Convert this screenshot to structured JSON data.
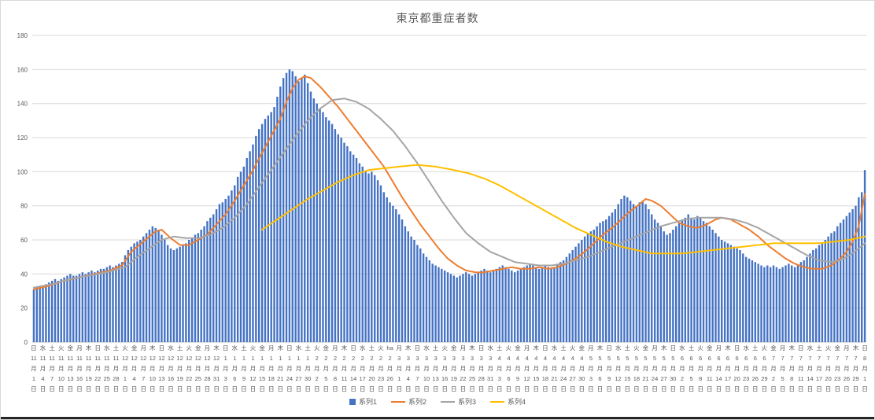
{
  "chart_data": {
    "type": "bar",
    "title": "東京都重症者数",
    "xlabel": "",
    "ylabel": "",
    "ylim": [
      0,
      180
    ],
    "y_ticks": [
      0,
      20,
      40,
      60,
      80,
      100,
      120,
      140,
      160,
      180
    ],
    "grid": true,
    "legend_position": "bottom",
    "colors": {
      "bar": "#4472C4",
      "line2": "#ED7D31",
      "line3": "#A5A5A5",
      "line4": "#FFC000",
      "gridline": "#D9D9D9",
      "axis_text": "#595959"
    },
    "x_labels": [
      "日\n11\n月\n1\n日",
      "水\n11\n月\n4\n日",
      "土\n11\n月\n7\n日",
      "火\n11\n月\n10\n日",
      "金\n11\n月\n13\n日",
      "月\n11\n月\n16\n日",
      "木\n11\n月\n19\n日",
      "日\n11\n月\n22\n日",
      "水\n11\n月\n25\n日",
      "土\n11\n月\n28\n日",
      "火\n12\n月\n1\n日",
      "金\n12\n月\n4\n日",
      "月\n12\n月\n7\n日",
      "木\n12\n月\n10\n日",
      "日\n12\n月\n13\n日",
      "水\n12\n月\n16\n日",
      "土\n12\n月\n19\n日",
      "火\n12\n月\n22\n日",
      "金\n12\n月\n25\n日",
      "月\n12\n月\n28\n日",
      "木\n12\n月\n31\n日",
      "日\n1\n月\n3\n日",
      "水\n1\n月\n6\n日",
      "土\n1\n月\n9\n日",
      "火\n1\n月\n12\n日",
      "金\n1\n月\n15\n日",
      "月\n1\n月\n18\n日",
      "木\n1\n月\n21\n日",
      "日\n1\n月\n24\n日",
      "水\n1\n月\n27\n日",
      "土\n1\n月\n30\n日",
      "火\n2\n月\n2\n日",
      "金\n2\n月\n5\n日",
      "月\n2\n月\n8\n日",
      "木\n2\n月\n11\n日",
      "日\n2\n月\n14\n日",
      "水\n2\n月\n17\n日",
      "土\n2\n月\n20\n日",
      "火\n2\n月\n23\n日",
      "ha\n2\n月\n26\n日",
      "月\n3\n月\n1\n日",
      "木\n3\n月\n4\n日",
      "日\n3\n月\n7\n日",
      "水\n3\n月\n10\n日",
      "土\n3\n月\n13\n日",
      "火\n3\n月\n16\n日",
      "金\n3\n月\n19\n日",
      "月\n3\n月\n22\n日",
      "木\n3\n月\n25\n日",
      "日\n3\n月\n28\n日",
      "水\n3\n月\n31\n日",
      "土\n4\n月\n3\n日",
      "火\n4\n月\n6\n日",
      "金\n4\n月\n9\n日",
      "月\n4\n月\n12\n日",
      "木\n4\n月\n15\n日",
      "日\n4\n月\n18\n日",
      "水\n4\n月\n21\n日",
      "土\n4\n月\n24\n日",
      "火\n4\n月\n27\n日",
      "金\n4\n月\n30\n日",
      "月\n5\n月\n3\n日",
      "木\n5\n月\n6\n日",
      "日\n5\n月\n9\n日",
      "水\n5\n月\n12\n日",
      "土\n5\n月\n15\n日",
      "火\n5\n月\n18\n日",
      "金\n5\n月\n21\n日",
      "月\n5\n月\n24\n日",
      "木\n5\n月\n27\n日",
      "日\n5\n月\n30\n日",
      "水\n6\n月\n2\n日",
      "土\n6\n月\n5\n日",
      "火\n6\n月\n8\n日",
      "金\n6\n月\n11\n日",
      "月\n6\n月\n14\n日",
      "木\n6\n月\n17\n日",
      "日\n6\n月\n20\n日",
      "水\n6\n月\n23\n日",
      "土\n6\n月\n26\n日",
      "火\n6\n月\n29\n日",
      "金\n7\n月\n2\n日",
      "月\n7\n月\n5\n日",
      "木\n7\n月\n8\n日",
      "日\n7\n月\n11\n日",
      "水\n7\n月\n14\n日",
      "土\n7\n月\n17\n日",
      "火\n7\n月\n20\n日",
      "金\n7\n月\n23\n日",
      "月\n7\n月\n26\n日",
      "木\n7\n月\n29\n日",
      "日\n8\n月\n1\n日"
    ],
    "x_label_step_days": 3,
    "series": [
      {
        "name": "系列1",
        "type": "bar",
        "color": "#4472C4",
        "values": [
          31,
          32,
          33,
          33,
          34,
          35,
          36,
          37,
          36,
          37,
          38,
          39,
          40,
          39,
          39,
          40,
          41,
          40,
          41,
          42,
          41,
          42,
          43,
          43,
          44,
          45,
          44,
          45,
          46,
          47,
          51,
          54,
          56,
          58,
          59,
          60,
          62,
          64,
          66,
          68,
          67,
          66,
          63,
          60,
          57,
          55,
          54,
          55,
          56,
          57,
          58,
          60,
          61,
          63,
          64,
          66,
          68,
          71,
          73,
          75,
          78,
          81,
          82,
          84,
          86,
          89,
          92,
          97,
          100,
          103,
          108,
          112,
          116,
          121,
          125,
          128,
          131,
          133,
          135,
          138,
          144,
          150,
          155,
          158,
          160,
          159,
          156,
          153,
          155,
          157,
          152,
          147,
          143,
          140,
          137,
          135,
          132,
          130,
          128,
          125,
          122,
          120,
          117,
          115,
          112,
          110,
          108,
          105,
          103,
          100,
          99,
          100,
          98,
          95,
          92,
          88,
          85,
          82,
          80,
          78,
          75,
          72,
          68,
          65,
          62,
          60,
          57,
          55,
          52,
          50,
          48,
          46,
          45,
          44,
          43,
          42,
          41,
          40,
          39,
          38,
          39,
          40,
          41,
          40,
          39,
          40,
          41,
          42,
          43,
          42,
          41,
          42,
          43,
          44,
          45,
          44,
          43,
          42,
          41,
          42,
          43,
          44,
          45,
          46,
          45,
          44,
          43,
          44,
          45,
          44,
          43,
          44,
          46,
          47,
          48,
          50,
          52,
          54,
          56,
          58,
          60,
          62,
          64,
          65,
          66,
          68,
          70,
          71,
          72,
          74,
          76,
          78,
          81,
          84,
          86,
          85,
          83,
          81,
          80,
          82,
          83,
          81,
          78,
          75,
          72,
          70,
          68,
          65,
          63,
          64,
          66,
          68,
          70,
          72,
          73,
          75,
          73,
          72,
          74,
          73,
          71,
          70,
          68,
          66,
          64,
          62,
          60,
          59,
          58,
          57,
          56,
          55,
          54,
          52,
          50,
          49,
          48,
          47,
          46,
          45,
          44,
          45,
          44,
          45,
          44,
          43,
          44,
          45,
          46,
          45,
          44,
          45,
          47,
          48,
          50,
          52,
          54,
          55,
          57,
          58,
          60,
          62,
          64,
          65,
          68,
          70,
          72,
          74,
          76,
          78,
          80,
          85,
          88,
          101
        ]
      },
      {
        "name": "系列2",
        "type": "line",
        "color": "#ED7D31",
        "anchors": [
          [
            0,
            31
          ],
          [
            5,
            33
          ],
          [
            10,
            36
          ],
          [
            15,
            38
          ],
          [
            20,
            40
          ],
          [
            25,
            42
          ],
          [
            29,
            45
          ],
          [
            32,
            53
          ],
          [
            36,
            59
          ],
          [
            40,
            65
          ],
          [
            42,
            66
          ],
          [
            45,
            61
          ],
          [
            48,
            57
          ],
          [
            51,
            57
          ],
          [
            54,
            60
          ],
          [
            57,
            63
          ],
          [
            60,
            69
          ],
          [
            63,
            75
          ],
          [
            66,
            83
          ],
          [
            69,
            92
          ],
          [
            72,
            101
          ],
          [
            75,
            111
          ],
          [
            78,
            121
          ],
          [
            81,
            131
          ],
          [
            83,
            141
          ],
          [
            85,
            149
          ],
          [
            87,
            154
          ],
          [
            89,
            156
          ],
          [
            91,
            155
          ],
          [
            94,
            150
          ],
          [
            97,
            144
          ],
          [
            100,
            138
          ],
          [
            103,
            131
          ],
          [
            106,
            124
          ],
          [
            109,
            117
          ],
          [
            112,
            110
          ],
          [
            115,
            103
          ],
          [
            118,
            94
          ],
          [
            121,
            85
          ],
          [
            124,
            77
          ],
          [
            127,
            69
          ],
          [
            130,
            62
          ],
          [
            133,
            55
          ],
          [
            136,
            49
          ],
          [
            139,
            45
          ],
          [
            142,
            42
          ],
          [
            145,
            41
          ],
          [
            148,
            41
          ],
          [
            151,
            42
          ],
          [
            154,
            43
          ],
          [
            157,
            44
          ],
          [
            160,
            43
          ],
          [
            163,
            43
          ],
          [
            166,
            44
          ],
          [
            169,
            43
          ],
          [
            172,
            44
          ],
          [
            175,
            46
          ],
          [
            178,
            49
          ],
          [
            181,
            53
          ],
          [
            184,
            58
          ],
          [
            187,
            63
          ],
          [
            190,
            67
          ],
          [
            193,
            72
          ],
          [
            196,
            77
          ],
          [
            199,
            81
          ],
          [
            201,
            84
          ],
          [
            203,
            83
          ],
          [
            206,
            80
          ],
          [
            209,
            75
          ],
          [
            212,
            70
          ],
          [
            215,
            68
          ],
          [
            218,
            67
          ],
          [
            221,
            69
          ],
          [
            224,
            72
          ],
          [
            226,
            73
          ],
          [
            229,
            72
          ],
          [
            232,
            69
          ],
          [
            235,
            66
          ],
          [
            238,
            62
          ],
          [
            241,
            57
          ],
          [
            244,
            53
          ],
          [
            247,
            49
          ],
          [
            250,
            46
          ],
          [
            253,
            44
          ],
          [
            256,
            43
          ],
          [
            259,
            43
          ],
          [
            262,
            45
          ],
          [
            265,
            49
          ],
          [
            267,
            53
          ],
          [
            269,
            59
          ],
          [
            271,
            68
          ],
          [
            273,
            87
          ]
        ]
      },
      {
        "name": "系列3",
        "type": "line",
        "color": "#A5A5A5",
        "anchors": [
          [
            0,
            32
          ],
          [
            6,
            34
          ],
          [
            12,
            37
          ],
          [
            18,
            39
          ],
          [
            24,
            41
          ],
          [
            30,
            44
          ],
          [
            34,
            50
          ],
          [
            38,
            55
          ],
          [
            42,
            60
          ],
          [
            46,
            62
          ],
          [
            50,
            61
          ],
          [
            54,
            61
          ],
          [
            58,
            63
          ],
          [
            62,
            67
          ],
          [
            66,
            73
          ],
          [
            70,
            81
          ],
          [
            74,
            91
          ],
          [
            78,
            101
          ],
          [
            82,
            111
          ],
          [
            86,
            121
          ],
          [
            90,
            130
          ],
          [
            94,
            137
          ],
          [
            98,
            142
          ],
          [
            102,
            143
          ],
          [
            106,
            141
          ],
          [
            110,
            137
          ],
          [
            114,
            131
          ],
          [
            118,
            124
          ],
          [
            122,
            115
          ],
          [
            126,
            105
          ],
          [
            130,
            94
          ],
          [
            134,
            83
          ],
          [
            138,
            73
          ],
          [
            142,
            64
          ],
          [
            146,
            58
          ],
          [
            150,
            53
          ],
          [
            154,
            50
          ],
          [
            158,
            47
          ],
          [
            162,
            46
          ],
          [
            166,
            45
          ],
          [
            170,
            45
          ],
          [
            174,
            46
          ],
          [
            178,
            48
          ],
          [
            182,
            50
          ],
          [
            186,
            53
          ],
          [
            190,
            56
          ],
          [
            194,
            59
          ],
          [
            198,
            62
          ],
          [
            202,
            65
          ],
          [
            206,
            68
          ],
          [
            210,
            70
          ],
          [
            214,
            72
          ],
          [
            218,
            73
          ],
          [
            222,
            73
          ],
          [
            226,
            73
          ],
          [
            230,
            72
          ],
          [
            234,
            70
          ],
          [
            238,
            67
          ],
          [
            242,
            63
          ],
          [
            246,
            59
          ],
          [
            250,
            55
          ],
          [
            254,
            51
          ],
          [
            258,
            48
          ],
          [
            262,
            47
          ],
          [
            265,
            48
          ],
          [
            268,
            51
          ],
          [
            271,
            55
          ],
          [
            273,
            58
          ]
        ]
      },
      {
        "name": "系列4",
        "type": "line",
        "color": "#FFC000",
        "anchors": [
          [
            75,
            66
          ],
          [
            80,
            72
          ],
          [
            85,
            78
          ],
          [
            90,
            84
          ],
          [
            95,
            89
          ],
          [
            100,
            94
          ],
          [
            105,
            98
          ],
          [
            110,
            101
          ],
          [
            115,
            102
          ],
          [
            120,
            103
          ],
          [
            126,
            104
          ],
          [
            132,
            103
          ],
          [
            138,
            101
          ],
          [
            143,
            99
          ],
          [
            148,
            96
          ],
          [
            153,
            92
          ],
          [
            158,
            87
          ],
          [
            163,
            82
          ],
          [
            168,
            77
          ],
          [
            173,
            72
          ],
          [
            178,
            67
          ],
          [
            183,
            63
          ],
          [
            188,
            59
          ],
          [
            193,
            56
          ],
          [
            198,
            54
          ],
          [
            203,
            52
          ],
          [
            208,
            52
          ],
          [
            213,
            52
          ],
          [
            218,
            53
          ],
          [
            223,
            54
          ],
          [
            228,
            55
          ],
          [
            233,
            56
          ],
          [
            238,
            57
          ],
          [
            243,
            58
          ],
          [
            248,
            58
          ],
          [
            253,
            58
          ],
          [
            258,
            58
          ],
          [
            263,
            59
          ],
          [
            268,
            60
          ],
          [
            273,
            62
          ]
        ]
      }
    ]
  }
}
